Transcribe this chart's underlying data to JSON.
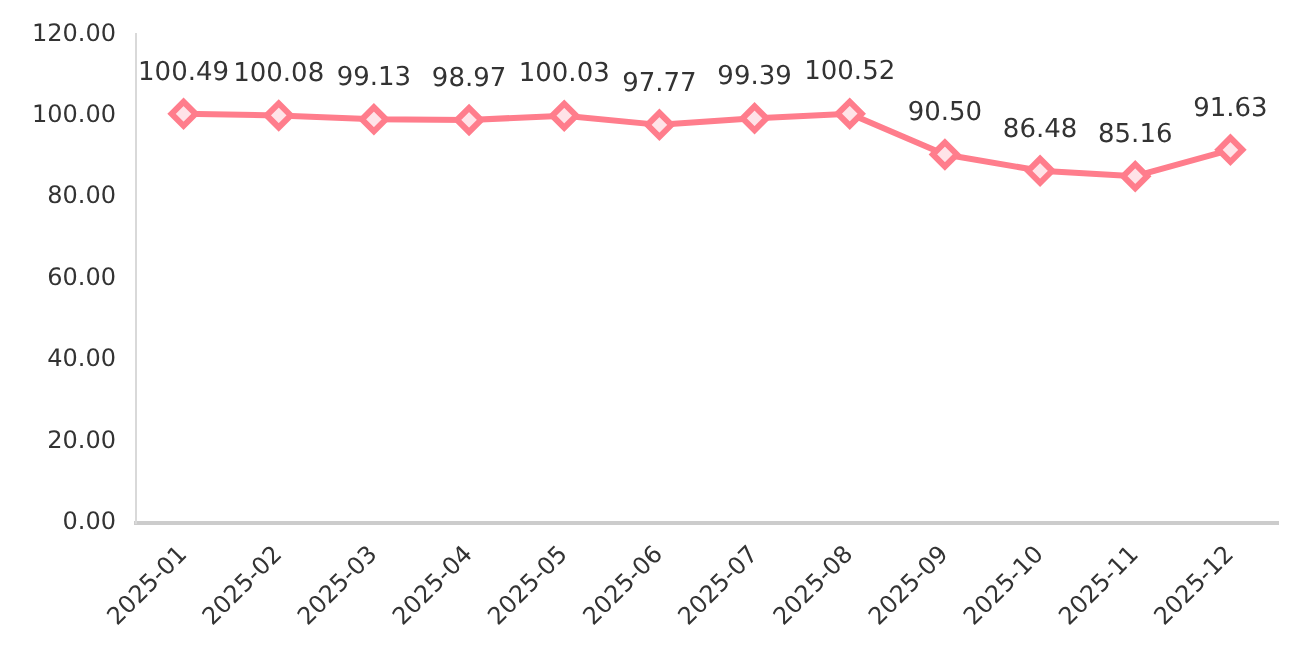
{
  "chart_data": {
    "type": "line",
    "categories": [
      "2025-01",
      "2025-02",
      "2025-03",
      "2025-04",
      "2025-05",
      "2025-06",
      "2025-07",
      "2025-08",
      "2025-09",
      "2025-10",
      "2025-11",
      "2025-12"
    ],
    "series": [
      {
        "color": "#ff7d8c",
        "values": [
          100.49,
          100.08,
          99.13,
          98.97,
          100.03,
          97.77,
          99.39,
          100.52,
          90.5,
          86.48,
          85.16,
          91.63
        ],
        "value_labels": [
          "100.49",
          "100.08",
          "99.13",
          "98.97",
          "100.03",
          "97.77",
          "99.39",
          "100.52",
          "90.50",
          "86.48",
          "85.16",
          "91.63"
        ]
      }
    ],
    "ylim": [
      0,
      120
    ],
    "yticks": [
      {
        "value": 0,
        "label": "0.00"
      },
      {
        "value": 20,
        "label": "20.00"
      },
      {
        "value": 40,
        "label": "40.00"
      },
      {
        "value": 60,
        "label": "60.00"
      },
      {
        "value": 80,
        "label": "80.00"
      },
      {
        "value": 100,
        "label": "100.00"
      },
      {
        "value": 120,
        "label": "120.00"
      }
    ],
    "grid": false,
    "legend": false,
    "marker": "diamond",
    "line_style": "solid"
  }
}
